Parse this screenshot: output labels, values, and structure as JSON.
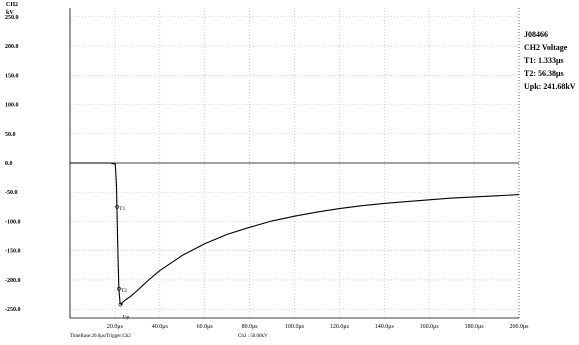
{
  "chart_data": {
    "type": "line",
    "y_axis_title": [
      "CH2",
      "kV"
    ],
    "yticks": [
      "250.0",
      "200.0",
      "150.0",
      "100.0",
      "50.0",
      "0.0",
      "-50.0",
      "-100.0",
      "-150.0",
      "-200.0",
      "-250.0"
    ],
    "ytick_values": [
      250,
      200,
      150,
      100,
      50,
      0,
      -50,
      -100,
      -150,
      -200,
      -250
    ],
    "xticks": [
      "20.0μs",
      "40.0μs",
      "60.0μs",
      "80.0μs",
      "100.0μs",
      "120.0μs",
      "140.0μs",
      "160.0μs",
      "180.0μs",
      "200.0μs"
    ],
    "xtick_values": [
      20,
      40,
      60,
      80,
      100,
      120,
      140,
      160,
      180,
      200
    ],
    "xlim": [
      0,
      200
    ],
    "ylim": [
      -265,
      265
    ],
    "grid": "dotted",
    "series": [
      {
        "x": [
          0,
          18,
          20.2,
          20.7,
          21,
          21.4,
          21.8,
          22.3,
          22.8,
          23.5,
          24.3,
          25.5,
          27,
          30,
          35,
          40,
          50,
          60,
          70,
          80,
          90,
          100,
          110,
          120,
          130,
          140,
          150,
          160,
          170,
          180,
          190,
          200
        ],
        "y": [
          0,
          0,
          -2,
          -40,
          -90,
          -160,
          -215,
          -240,
          -242,
          -238,
          -235,
          -232,
          -228,
          -218,
          -200,
          -184,
          -158,
          -138,
          -122,
          -110,
          -99,
          -91,
          -84,
          -78,
          -73,
          -69,
          -66,
          -63,
          -60,
          -58,
          -56,
          -54
        ]
      }
    ],
    "markers": [
      {
        "label": "T1",
        "x": 21,
        "y": -75
      },
      {
        "label": "T2",
        "x": 21.8,
        "y": -215
      },
      {
        "label": "Up",
        "x": 22.5,
        "y": -242
      }
    ],
    "colors": {
      "trace": "#000000",
      "grid": "#bbbbbb",
      "axis": "#000000"
    }
  },
  "info": {
    "id": "J08466",
    "channel": "CH2 Voltage",
    "t1": "T1:  1.333μs",
    "t2": "T2:  56.38μs",
    "upk": "Upk: 241.68kV"
  },
  "footer": {
    "timebase": "TimeBase:20.0μs/Trigger:Ch2",
    "channel_scale": "Ch2 :  50.00kV"
  }
}
